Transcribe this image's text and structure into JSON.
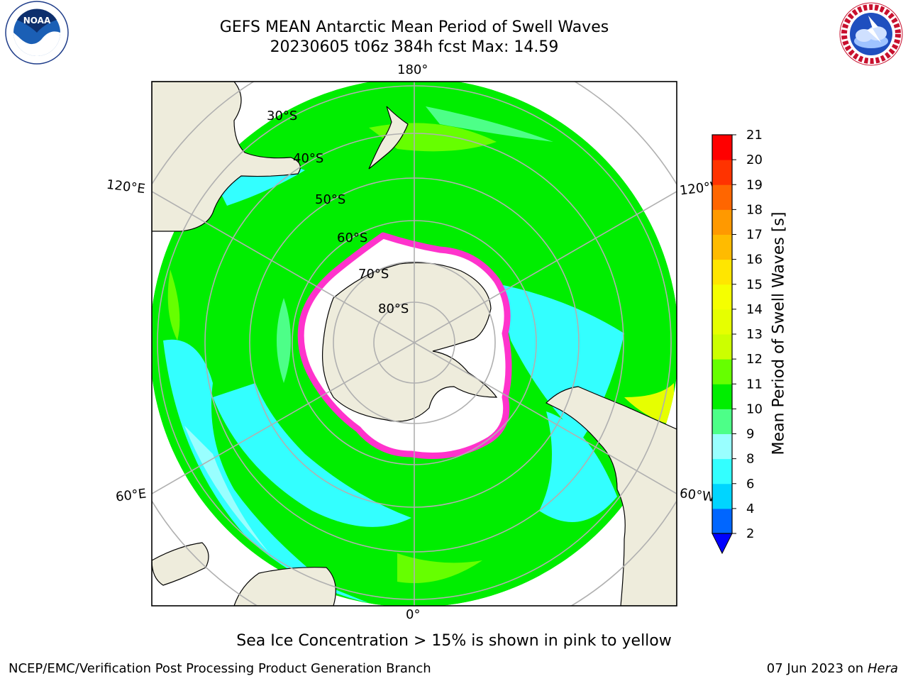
{
  "header": {
    "title_line1": "GEFS MEAN Antarctic Mean Period of Swell Waves",
    "title_line2": "20230605 t06z 384h fcst   Max: 14.59"
  },
  "logos": {
    "noaa_text": "NOAA",
    "noaa_ring": "NATIONAL OCEANIC AND ATMOSPHERIC ADMINISTRATION · U.S. DEPARTMENT OF COMMERCE",
    "nws_ring": "NATIONAL WEATHER SERVICE"
  },
  "map": {
    "projection": "south polar stereographic",
    "longitude_labels": {
      "top": "180°",
      "bottom": "0°",
      "upper_left": "120°E",
      "upper_right": "120°W",
      "lower_left": "60°E",
      "lower_right": "60°W"
    },
    "latitude_labels": [
      "30°S",
      "40°S",
      "50°S",
      "60°S",
      "70°S",
      "80°S"
    ],
    "colors": {
      "land": "#eeecdc",
      "ice_free_ocean_inside_ice": "#ffffff",
      "sea_ice_edge": "#ff33cc",
      "graticule": "#b0b0b0"
    }
  },
  "colorbar": {
    "label": "Mean Period of Swell Waves [s]",
    "ticks": [
      "2",
      "4",
      "6",
      "8",
      "9",
      "10",
      "11",
      "12",
      "13",
      "14",
      "15",
      "16",
      "17",
      "18",
      "19",
      "20",
      "21"
    ],
    "bins": [
      {
        "from": 2,
        "to": 4,
        "color": "#0066ff"
      },
      {
        "from": 4,
        "to": 6,
        "color": "#00d5ff"
      },
      {
        "from": 6,
        "to": 8,
        "color": "#33ffff"
      },
      {
        "from": 8,
        "to": 9,
        "color": "#99ffff"
      },
      {
        "from": 9,
        "to": 10,
        "color": "#4dff88"
      },
      {
        "from": 10,
        "to": 11,
        "color": "#00ee00"
      },
      {
        "from": 11,
        "to": 12,
        "color": "#66ff00"
      },
      {
        "from": 12,
        "to": 13,
        "color": "#ccff00"
      },
      {
        "from": 13,
        "to": 14,
        "color": "#e6ff00"
      },
      {
        "from": 14,
        "to": 15,
        "color": "#f5ff00"
      },
      {
        "from": 15,
        "to": 16,
        "color": "#ffe600"
      },
      {
        "from": 16,
        "to": 17,
        "color": "#ffbb00"
      },
      {
        "from": 17,
        "to": 18,
        "color": "#ff9900"
      },
      {
        "from": 18,
        "to": 19,
        "color": "#ff6600"
      },
      {
        "from": 19,
        "to": 20,
        "color": "#ff3300"
      },
      {
        "from": 20,
        "to": 21,
        "color": "#ff0000"
      }
    ],
    "under_color": "#0000ff"
  },
  "footer": {
    "note": "Sea Ice Concentration > 15% is shown in pink to yellow",
    "left": "NCEP/EMC/Verification Post Processing Product Generation Branch",
    "right_date": "07 Jun 2023 on",
    "right_machine": "Hera"
  }
}
